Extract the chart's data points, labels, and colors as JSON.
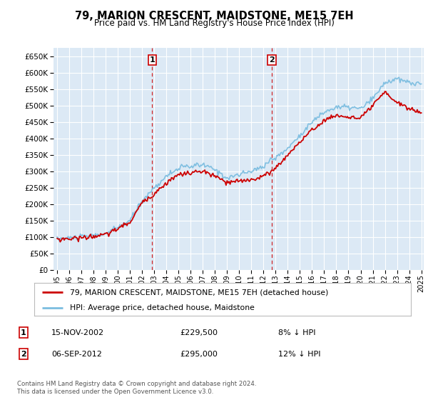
{
  "title": "79, MARION CRESCENT, MAIDSTONE, ME15 7EH",
  "subtitle": "Price paid vs. HM Land Registry's House Price Index (HPI)",
  "ylim": [
    0,
    675000
  ],
  "yticks": [
    0,
    50000,
    100000,
    150000,
    200000,
    250000,
    300000,
    350000,
    400000,
    450000,
    500000,
    550000,
    600000,
    650000
  ],
  "bg_color": "#dce9f5",
  "grid_color": "#ffffff",
  "hpi_color": "#7bbde0",
  "price_color": "#cc0000",
  "sale1_date": "15-NOV-2002",
  "sale1_price": "£229,500",
  "sale1_diff": "8% ↓ HPI",
  "sale2_date": "06-SEP-2012",
  "sale2_price": "£295,000",
  "sale2_diff": "12% ↓ HPI",
  "legend1": "79, MARION CRESCENT, MAIDSTONE, ME15 7EH (detached house)",
  "legend2": "HPI: Average price, detached house, Maidstone",
  "footer": "Contains HM Land Registry data © Crown copyright and database right 2024.\nThis data is licensed under the Open Government Licence v3.0."
}
